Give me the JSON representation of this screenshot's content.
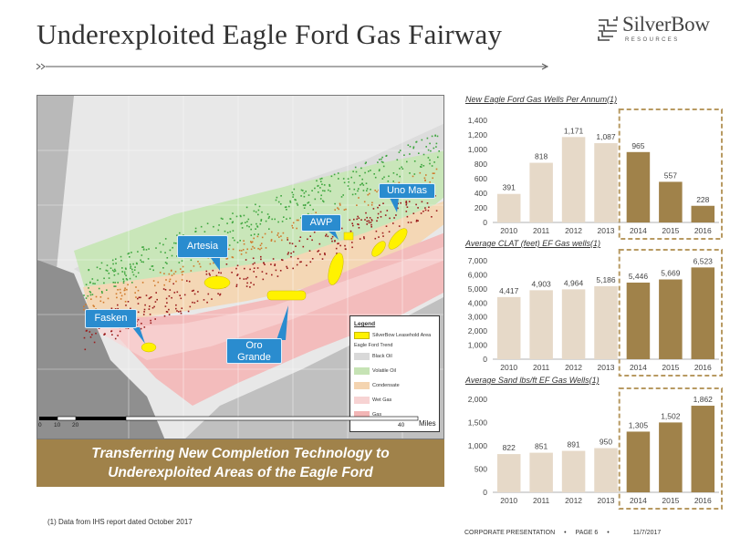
{
  "header": {
    "title": "Underexploited Eagle Ford Gas Fairway"
  },
  "logo": {
    "word": "SilverBow",
    "subtext": "RESOURCES",
    "icon": "silverbow-grid-icon"
  },
  "map": {
    "callouts": {
      "uno_mas": "Uno Mas",
      "awp": "AWP",
      "artesia": "Artesia",
      "fasken": "Fasken",
      "oro_grande_line1": "Oro",
      "oro_grande_line2": "Grande"
    },
    "legend": {
      "title": "Legend",
      "items": [
        "SilverBow Leasehold Area",
        "Eagle Ford Trend",
        "Black Oil",
        "Volatile Oil",
        "Condensate",
        "Wet Gas",
        "Gas"
      ]
    },
    "scale": {
      "t0": "0",
      "t1": "10",
      "t2": "20",
      "t3": "40",
      "unit": "Miles"
    }
  },
  "banner": {
    "line1": "Transferring New Completion Technology to",
    "line2": "Underexploited Areas of the Eagle Ford"
  },
  "colors": {
    "base_bar": "#e6d9c8",
    "highlight_bar": "#a0824a",
    "highlight_box": "#b89a62",
    "banner": "#a0824a",
    "callout": "#2a8ccf",
    "black_oil": "#d9d9d9",
    "volatile_oil": "#c6e3b5",
    "condensate": "#f4d4b0",
    "wet_gas": "#f7d3d3",
    "gas": "#f2b5b5",
    "leasehold": "#fff200"
  },
  "chart_data": [
    {
      "type": "bar",
      "title": "New Eagle Ford Gas Wells Per Annum(1)",
      "categories": [
        "2010",
        "2011",
        "2012",
        "2013",
        "2014",
        "2015",
        "2016"
      ],
      "values": [
        391,
        818,
        1171,
        1087,
        965,
        557,
        228
      ],
      "labels": [
        "391",
        "818",
        "1,171",
        "1,087",
        "965",
        "557",
        "228"
      ],
      "ylim": [
        0,
        1400
      ],
      "yticks": [
        0,
        200,
        400,
        600,
        800,
        1000,
        1200,
        1400
      ],
      "ytick_labels": [
        "0",
        "200",
        "400",
        "600",
        "800",
        "1,000",
        "1,200",
        "1,400"
      ],
      "highlight_from": 4,
      "grid": false
    },
    {
      "type": "bar",
      "title": "Average CLAT (feet) EF Gas wells(1)",
      "categories": [
        "2010",
        "2011",
        "2012",
        "2013",
        "2014",
        "2015",
        "2016"
      ],
      "values": [
        4417,
        4903,
        4964,
        5186,
        5446,
        5669,
        6523
      ],
      "labels": [
        "4,417",
        "4,903",
        "4,964",
        "5,186",
        "5,446",
        "5,669",
        "6,523"
      ],
      "ylim": [
        0,
        7000
      ],
      "yticks": [
        0,
        1000,
        2000,
        3000,
        4000,
        5000,
        6000,
        7000
      ],
      "ytick_labels": [
        "0",
        "1,000",
        "2,000",
        "3,000",
        "4,000",
        "5,000",
        "6,000",
        "7,000"
      ],
      "highlight_from": 4,
      "grid": false
    },
    {
      "type": "bar",
      "title": "Average Sand lbs/ft EF Gas Wells(1)",
      "categories": [
        "2010",
        "2011",
        "2012",
        "2013",
        "2014",
        "2015",
        "2016"
      ],
      "values": [
        822,
        851,
        891,
        950,
        1305,
        1502,
        1862
      ],
      "labels": [
        "822",
        "851",
        "891",
        "950",
        "1,305",
        "1,502",
        "1,862"
      ],
      "ylim": [
        0,
        2000
      ],
      "yticks": [
        0,
        500,
        1000,
        1500,
        2000
      ],
      "ytick_labels": [
        "0",
        "500",
        "1,000",
        "1,500",
        "2,000"
      ],
      "highlight_from": 4,
      "grid": false
    }
  ],
  "footnote": "(1)   Data from IHS report dated October 2017",
  "footer": {
    "label": "CORPORATE PRESENTATION",
    "sep": "•",
    "page": "PAGE 6",
    "date": "11/7/2017"
  }
}
